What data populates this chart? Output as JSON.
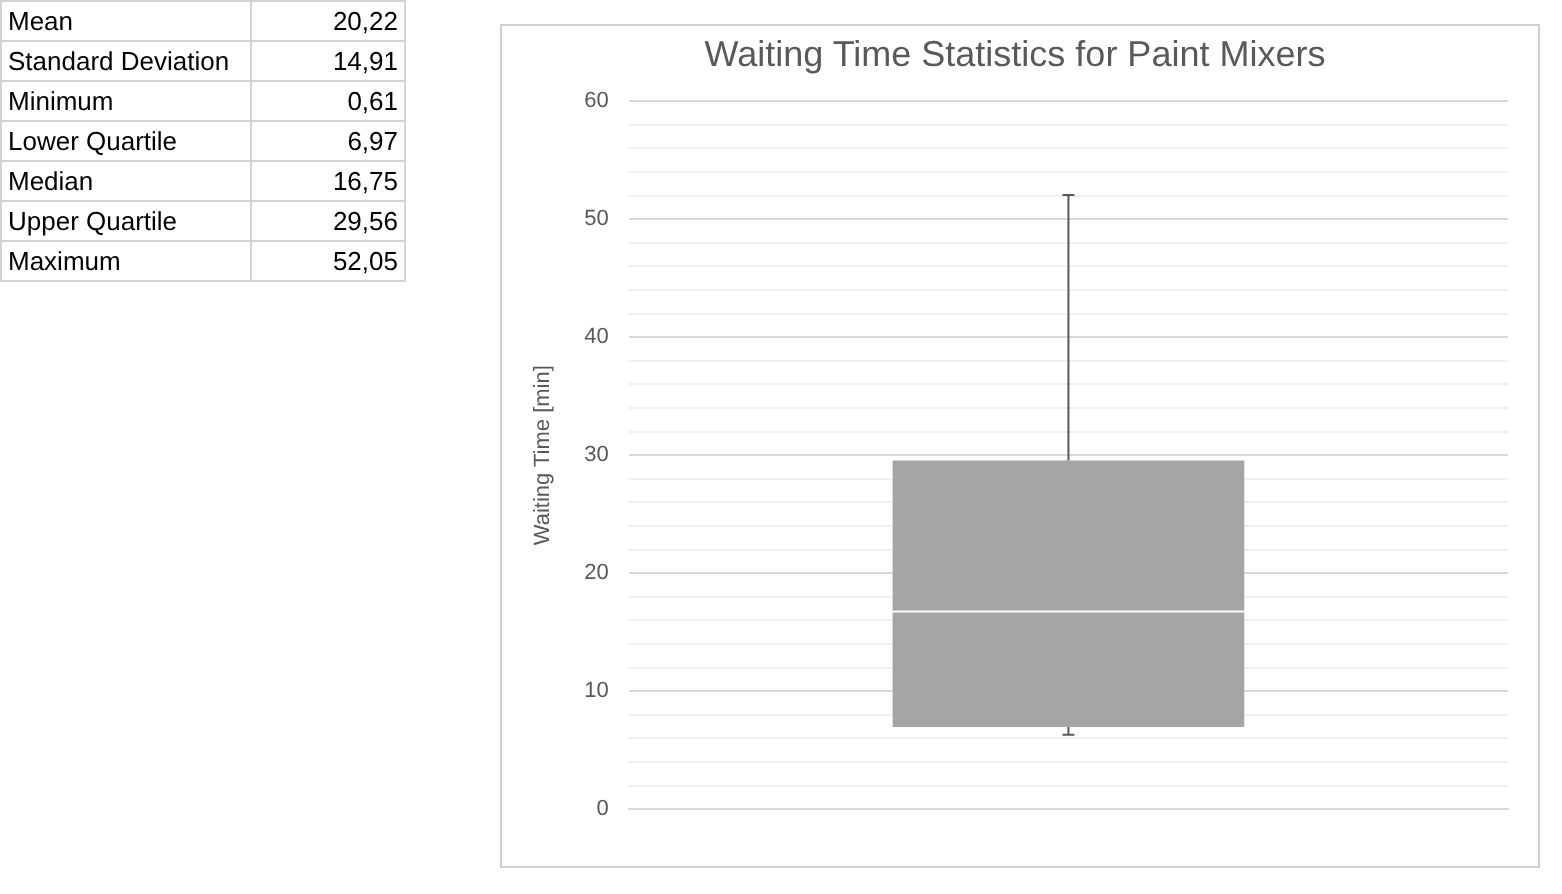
{
  "chart_data": {
    "type": "box",
    "title": "Waiting Time Statistics for Paint Mixers",
    "ylabel": "Waiting Time [min]",
    "categories": [
      null
    ],
    "boxes": [
      {
        "low": 6.3,
        "q1": 6.97,
        "median": 16.75,
        "q3": 29.56,
        "high": 52.05
      }
    ],
    "color": "#a5a5a5",
    "ylim": [
      0,
      60
    ],
    "yticks": [
      0,
      {
        "value": 2,
        "label": null
      },
      {
        "value": 4,
        "label": null
      },
      {
        "value": 6,
        "label": null
      },
      {
        "value": 8,
        "label": null
      },
      10,
      {
        "value": 12,
        "label": null
      },
      {
        "value": 14,
        "label": null
      },
      {
        "value": 16,
        "label": null
      },
      {
        "value": 18,
        "label": null
      },
      20,
      {
        "value": 22,
        "label": null
      },
      {
        "value": 24,
        "label": null
      },
      {
        "value": 26,
        "label": null
      },
      {
        "value": 28,
        "label": null
      },
      30,
      {
        "value": 32,
        "label": null
      },
      {
        "value": 34,
        "label": null
      },
      {
        "value": 36,
        "label": null
      },
      {
        "value": 38,
        "label": null
      },
      40,
      {
        "value": 42,
        "label": null
      },
      {
        "value": 44,
        "label": null
      },
      {
        "value": 46,
        "label": null
      },
      {
        "value": 48,
        "label": null
      },
      50,
      {
        "value": 52,
        "label": null
      },
      {
        "value": 54,
        "label": null
      },
      {
        "value": 56,
        "label": null
      },
      {
        "value": 58,
        "label": null
      },
      60
    ],
    "grid": "y",
    "legend": false,
    "annotations": [
      "Mean 20,22",
      "Standard Deviation 14,91",
      "Minimum 0,61",
      "Lower Quartile 6,97",
      "Median 16,75",
      "Upper Quartile 29,56",
      "Maximum 52,05"
    ]
  }
}
